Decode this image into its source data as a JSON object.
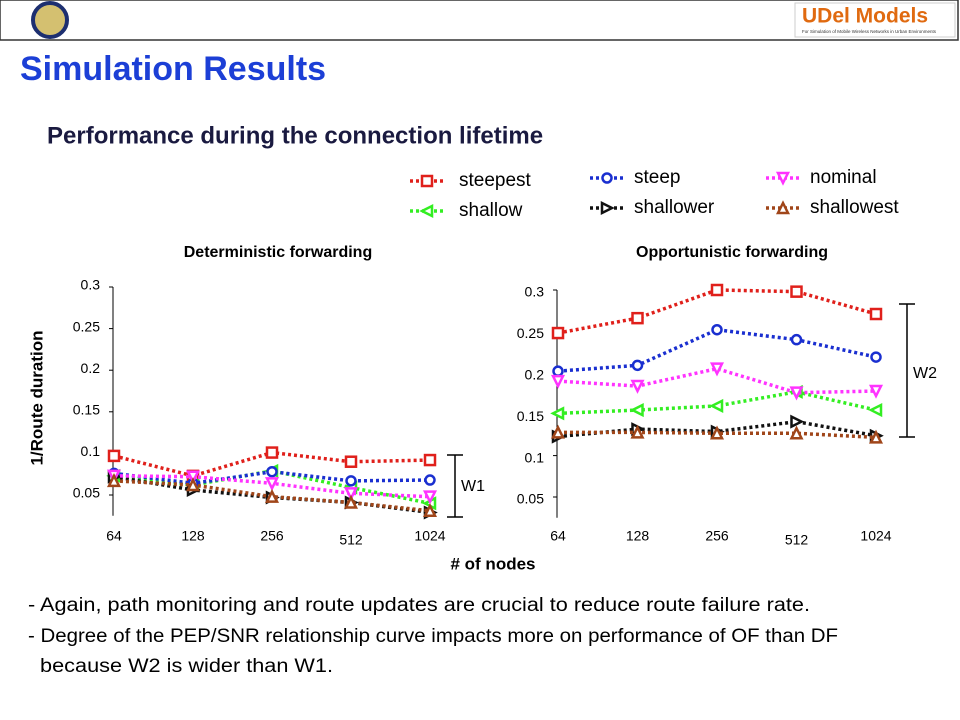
{
  "header": {
    "logo_text": "UDel Models",
    "logo_tagline": "For Simulation of Mobile Wireless Networks in Urban Environments"
  },
  "title": "Simulation Results",
  "subtitle": "Performance during the connection lifetime",
  "axis_labels": {
    "x": "# of nodes",
    "y": "1/Route duration"
  },
  "bullets": [
    "- Again, path monitoring and route updates are crucial to reduce route failure rate.",
    "- Degree of the PEP/SNR relationship curve impacts more on performance of OF than DF",
    "  because W2 is wider than W1."
  ],
  "chart_data": [
    {
      "type": "line",
      "title": "Deterministic forwarding",
      "categories": [
        "64",
        "128",
        "256",
        "512",
        "1024"
      ],
      "ylim": [
        0.025,
        0.3
      ],
      "yticks": [
        0.05,
        0.1,
        0.15,
        0.2,
        0.25,
        0.3
      ],
      "annotations": [
        "W1"
      ],
      "series": [
        {
          "name": "steepest",
          "color": "#e0201b",
          "marker": "square",
          "values": [
            0.097,
            0.073,
            0.101,
            0.09,
            0.092
          ]
        },
        {
          "name": "shallow",
          "color": "#33ee22",
          "marker": "tri-left",
          "values": [
            0.073,
            0.062,
            0.079,
            0.059,
            0.04
          ]
        },
        {
          "name": "steep",
          "color": "#1a2fd0",
          "marker": "circle",
          "values": [
            0.076,
            0.064,
            0.078,
            0.067,
            0.068
          ]
        },
        {
          "name": "shallower",
          "color": "#111111",
          "marker": "tri-right",
          "values": [
            0.072,
            0.056,
            0.047,
            0.041,
            0.029
          ]
        },
        {
          "name": "nominal",
          "color": "#ff33ff",
          "marker": "tri-down",
          "values": [
            0.073,
            0.072,
            0.064,
            0.052,
            0.048
          ]
        },
        {
          "name": "shallowest",
          "color": "#a0461a",
          "marker": "tri-up",
          "values": [
            0.067,
            0.062,
            0.048,
            0.041,
            0.031
          ]
        }
      ]
    },
    {
      "type": "line",
      "title": "Opportunistic forwarding",
      "categories": [
        "64",
        "128",
        "256",
        "512",
        "1024"
      ],
      "ylim": [
        0.025,
        0.3
      ],
      "yticks": [
        0.05,
        0.1,
        0.15,
        0.2,
        0.25,
        0.3
      ],
      "annotations": [
        "W2"
      ],
      "series": [
        {
          "color": "#e0201b",
          "marker": "square",
          "values": [
            0.248,
            0.266,
            0.3,
            0.298,
            0.271
          ]
        },
        {
          "color": "#33ee22",
          "marker": "tri-left",
          "values": [
            0.151,
            0.155,
            0.16,
            0.177,
            0.155
          ]
        },
        {
          "color": "#1a2fd0",
          "marker": "circle",
          "values": [
            0.202,
            0.209,
            0.252,
            0.24,
            0.219
          ]
        },
        {
          "color": "#111111",
          "marker": "tri-right",
          "values": [
            0.123,
            0.132,
            0.129,
            0.141,
            0.124
          ]
        },
        {
          "color": "#ff33ff",
          "marker": "tri-down",
          "values": [
            0.19,
            0.184,
            0.205,
            0.176,
            0.178
          ]
        },
        {
          "color": "#a0461a",
          "marker": "tri-up",
          "values": [
            0.128,
            0.128,
            0.127,
            0.127,
            0.122
          ]
        }
      ]
    }
  ]
}
